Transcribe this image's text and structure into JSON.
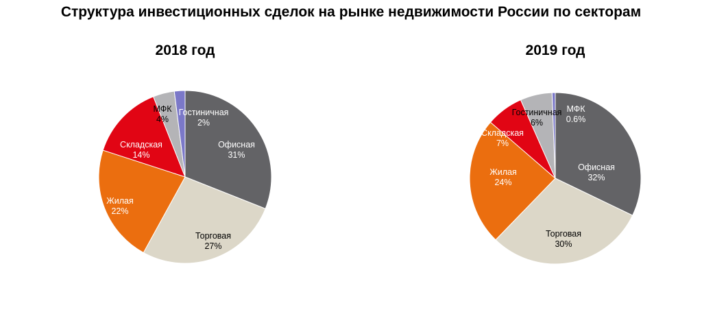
{
  "title": "Структура инвестиционных сделок на рынке недвижимости России по секторам",
  "chart_data": [
    {
      "type": "pie",
      "title": "2018 год",
      "slices": [
        {
          "label": "Офисная",
          "value": 31,
          "value_label": "31%",
          "color": "#636366",
          "text_color": "#ffffff"
        },
        {
          "label": "Торговая",
          "value": 27,
          "value_label": "27%",
          "color": "#dcd7c8",
          "text_color": "#000000"
        },
        {
          "label": "Жилая",
          "value": 22,
          "value_label": "22%",
          "color": "#eb6e0f",
          "text_color": "#ffffff"
        },
        {
          "label": "Складская",
          "value": 14,
          "value_label": "14%",
          "color": "#e10514",
          "text_color": "#ffffff"
        },
        {
          "label": "МФК",
          "value": 4,
          "value_label": "4%",
          "color": "#b4b4b7",
          "text_color": "#000000"
        },
        {
          "label": "Гостиничная",
          "value": 2,
          "value_label": "2%",
          "color": "#7b78c8",
          "text_color": "#ffffff"
        }
      ]
    },
    {
      "type": "pie",
      "title": "2019 год",
      "slices": [
        {
          "label": "Офисная",
          "value": 32,
          "value_label": "32%",
          "color": "#636366",
          "text_color": "#ffffff"
        },
        {
          "label": "Торговая",
          "value": 30,
          "value_label": "30%",
          "color": "#dcd7c8",
          "text_color": "#000000"
        },
        {
          "label": "Жилая",
          "value": 24,
          "value_label": "24%",
          "color": "#eb6e0f",
          "text_color": "#ffffff"
        },
        {
          "label": "Складская",
          "value": 7,
          "value_label": "7%",
          "color": "#e10514",
          "text_color": "#ffffff"
        },
        {
          "label": "Гостиничная",
          "value": 6,
          "value_label": "6%",
          "color": "#b4b4b7",
          "text_color": "#000000"
        },
        {
          "label": "МФК",
          "value": 0.6,
          "value_label": "0.6%",
          "color": "#7b78c8",
          "text_color": "#ffffff"
        }
      ]
    }
  ]
}
